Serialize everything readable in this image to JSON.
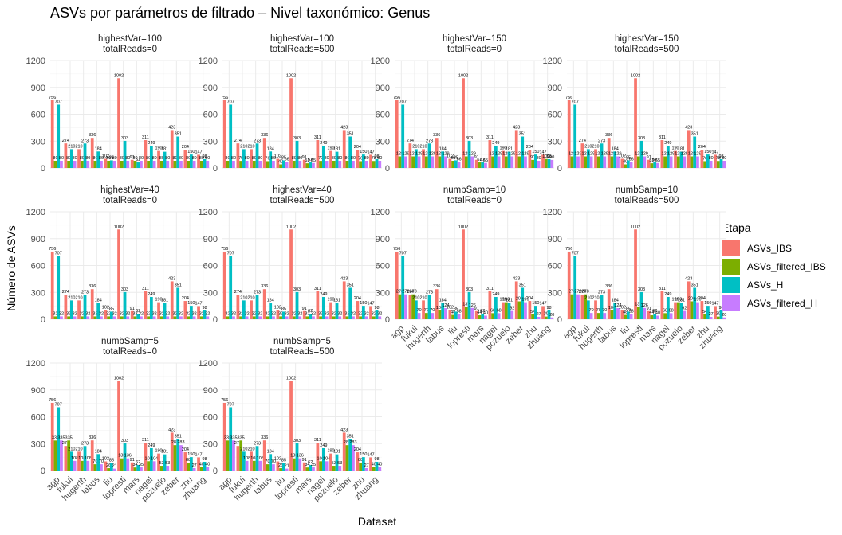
{
  "chart_data": {
    "type": "bar",
    "title": "ASVs por parámetros de filtrado – Nivel taxonómico: Genus",
    "xlabel": "Dataset",
    "ylabel": "Número de ASVs",
    "ylim": [
      0,
      1200
    ],
    "yticks": [
      0,
      300,
      600,
      900,
      1200
    ],
    "grid": true,
    "legend": {
      "title": "Etapa",
      "position": "right"
    },
    "categories": [
      "agp",
      "fukui",
      "hugerth",
      "labus",
      "liu",
      "lopresti",
      "mars",
      "nagel",
      "pozuelo",
      "zeber",
      "zhu",
      "zhuang"
    ],
    "series_names": [
      "ASVs_IBS",
      "ASVs_filtered_IBS",
      "ASVs_H",
      "ASVs_filtered_H"
    ],
    "colors": [
      "#F8766D",
      "#7CAE00",
      "#00BFC4",
      "#C77CFF"
    ],
    "panels": [
      {
        "strip": [
          "highestVar=100",
          "totalReads=0"
        ],
        "values": [
          [
            756,
            274,
            210,
            336,
            102,
            1002,
            91,
            311,
            190,
            423,
            204,
            147
          ],
          [
            80,
            80,
            80,
            80,
            80,
            80,
            80,
            80,
            80,
            80,
            80,
            80
          ],
          [
            707,
            210,
            273,
            184,
            85,
            303,
            62,
            249,
            181,
            351,
            150,
            98
          ],
          [
            80,
            80,
            80,
            80,
            80,
            80,
            80,
            80,
            80,
            80,
            80,
            80
          ]
        ]
      },
      {
        "strip": [
          "highestVar=100",
          "totalReads=500"
        ],
        "values": [
          [
            756,
            274,
            210,
            336,
            102,
            1002,
            91,
            311,
            190,
            423,
            204,
            147
          ],
          [
            80,
            79,
            80,
            76,
            40,
            80,
            52,
            79,
            80,
            80,
            76,
            78
          ],
          [
            707,
            210,
            273,
            184,
            85,
            303,
            62,
            249,
            181,
            351,
            150,
            98
          ],
          [
            80,
            80,
            80,
            80,
            66,
            80,
            55,
            80,
            80,
            80,
            80,
            80
          ]
        ]
      },
      {
        "strip": [
          "highestVar=150",
          "totalReads=0"
        ],
        "values": [
          [
            756,
            274,
            210,
            336,
            102,
            1002,
            91,
            311,
            190,
            423,
            204,
            147
          ],
          [
            129,
            129,
            129,
            129,
            80,
            129,
            62,
            129,
            129,
            129,
            90,
            100
          ],
          [
            707,
            210,
            273,
            184,
            85,
            303,
            62,
            249,
            181,
            351,
            150,
            98
          ],
          [
            129,
            129,
            129,
            129,
            66,
            129,
            55,
            129,
            129,
            129,
            80,
            90
          ]
        ]
      },
      {
        "strip": [
          "highestVar=150",
          "totalReads=500"
        ],
        "values": [
          [
            756,
            274,
            210,
            336,
            102,
            1002,
            91,
            311,
            190,
            423,
            204,
            147
          ],
          [
            129,
            129,
            129,
            129,
            40,
            129,
            52,
            129,
            129,
            129,
            76,
            78
          ],
          [
            707,
            210,
            273,
            184,
            85,
            303,
            62,
            249,
            181,
            351,
            150,
            98
          ],
          [
            129,
            129,
            129,
            129,
            66,
            129,
            55,
            129,
            129,
            129,
            80,
            80
          ]
        ]
      },
      {
        "strip": [
          "highestVar=40",
          "totalReads=0"
        ],
        "values": [
          [
            756,
            274,
            210,
            336,
            102,
            1002,
            91,
            311,
            190,
            423,
            204,
            147
          ],
          [
            32,
            32,
            32,
            32,
            32,
            32,
            32,
            32,
            32,
            32,
            32,
            32
          ],
          [
            707,
            210,
            273,
            184,
            85,
            303,
            62,
            249,
            181,
            351,
            150,
            98
          ],
          [
            32,
            32,
            32,
            32,
            32,
            32,
            32,
            32,
            32,
            32,
            32,
            32
          ]
        ]
      },
      {
        "strip": [
          "highestVar=40",
          "totalReads=500"
        ],
        "values": [
          [
            756,
            274,
            210,
            336,
            102,
            1002,
            91,
            311,
            190,
            423,
            204,
            147
          ],
          [
            32,
            32,
            32,
            32,
            32,
            32,
            32,
            32,
            32,
            32,
            32,
            32
          ],
          [
            707,
            210,
            273,
            184,
            85,
            303,
            62,
            249,
            181,
            351,
            150,
            98
          ],
          [
            32,
            32,
            32,
            32,
            32,
            32,
            32,
            32,
            32,
            32,
            32,
            32
          ]
        ]
      },
      {
        "strip": [
          "numbSamp=10",
          "totalReads=0"
        ],
        "values": [
          [
            756,
            274,
            210,
            336,
            102,
            1002,
            91,
            311,
            190,
            423,
            204,
            147
          ],
          [
            278,
            278,
            70,
            100,
            48,
            137,
            44,
            68,
            190,
            200,
            54,
            30
          ],
          [
            707,
            210,
            273,
            184,
            85,
            303,
            62,
            249,
            181,
            351,
            150,
            98
          ],
          [
            278,
            70,
            70,
            124,
            58,
            126,
            40,
            68,
            92,
            190,
            27,
            20
          ]
        ]
      },
      {
        "strip": [
          "numbSamp=10",
          "totalReads=500"
        ],
        "values": [
          [
            756,
            274,
            210,
            336,
            102,
            1002,
            91,
            311,
            190,
            423,
            204,
            147
          ],
          [
            278,
            278,
            70,
            100,
            48,
            137,
            44,
            68,
            190,
            200,
            54,
            30
          ],
          [
            707,
            210,
            273,
            184,
            85,
            303,
            62,
            249,
            181,
            351,
            150,
            98
          ],
          [
            278,
            70,
            70,
            124,
            58,
            126,
            40,
            68,
            92,
            190,
            27,
            20
          ]
        ]
      },
      {
        "strip": [
          "numbSamp=5",
          "totalReads=0"
        ],
        "values": [
          [
            756,
            274,
            210,
            336,
            102,
            1002,
            91,
            311,
            190,
            423,
            204,
            147
          ],
          [
            335,
            335,
            108,
            70,
            26,
            136,
            34,
            104,
            53,
            283,
            88,
            40
          ],
          [
            707,
            210,
            273,
            184,
            85,
            303,
            62,
            249,
            181,
            351,
            150,
            98
          ],
          [
            335,
            108,
            108,
            70,
            21,
            136,
            35,
            104,
            53,
            283,
            27,
            40
          ]
        ]
      },
      {
        "strip": [
          "numbSamp=5",
          "totalReads=500"
        ],
        "values": [
          [
            756,
            274,
            210,
            336,
            102,
            1002,
            91,
            311,
            190,
            423,
            204,
            147
          ],
          [
            335,
            335,
            108,
            70,
            26,
            136,
            34,
            104,
            53,
            283,
            88,
            40
          ],
          [
            707,
            210,
            273,
            184,
            85,
            303,
            62,
            249,
            181,
            351,
            150,
            98
          ],
          [
            335,
            108,
            108,
            70,
            21,
            136,
            35,
            104,
            53,
            283,
            27,
            40
          ]
        ]
      }
    ]
  }
}
